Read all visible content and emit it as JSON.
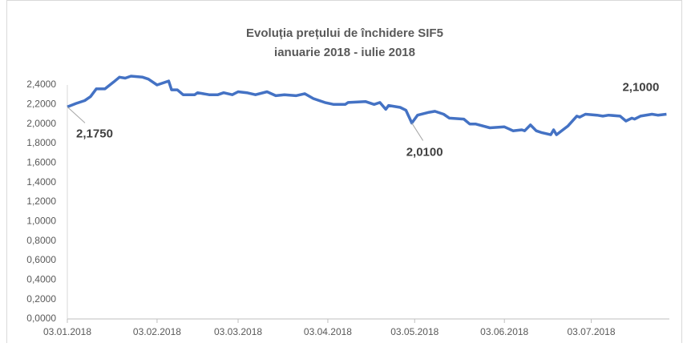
{
  "chart_data": {
    "type": "line",
    "title": "Evoluția prețului de închidere SIF5",
    "subtitle": "ianuarie 2018 - iulie 2018",
    "x": [
      "2018-01-03",
      "2018-01-06",
      "2018-01-09",
      "2018-01-11",
      "2018-01-13",
      "2018-01-16",
      "2018-01-19",
      "2018-01-21",
      "2018-01-23",
      "2018-01-25",
      "2018-01-29",
      "2018-01-31",
      "2018-02-03",
      "2018-02-07",
      "2018-02-08",
      "2018-02-10",
      "2018-02-12",
      "2018-02-16",
      "2018-02-17",
      "2018-02-21",
      "2018-02-24",
      "2018-02-26",
      "2018-03-01",
      "2018-03-03",
      "2018-03-06",
      "2018-03-09",
      "2018-03-13",
      "2018-03-16",
      "2018-03-19",
      "2018-03-23",
      "2018-03-26",
      "2018-03-29",
      "2018-04-02",
      "2018-04-05",
      "2018-04-09",
      "2018-04-10",
      "2018-04-16",
      "2018-04-19",
      "2018-04-21",
      "2018-04-23",
      "2018-04-24",
      "2018-04-28",
      "2018-04-30",
      "2018-05-02",
      "2018-05-04",
      "2018-05-08",
      "2018-05-10",
      "2018-05-13",
      "2018-05-15",
      "2018-05-20",
      "2018-05-22",
      "2018-05-24",
      "2018-05-29",
      "2018-06-03",
      "2018-06-06",
      "2018-06-09",
      "2018-06-10",
      "2018-06-12",
      "2018-06-14",
      "2018-06-16",
      "2018-06-19",
      "2018-06-20",
      "2018-06-21",
      "2018-06-25",
      "2018-06-28",
      "2018-06-29",
      "2018-07-01",
      "2018-07-05",
      "2018-07-07",
      "2018-07-09",
      "2018-07-13",
      "2018-07-15",
      "2018-07-17",
      "2018-07-18",
      "2018-07-20",
      "2018-07-24",
      "2018-07-26",
      "2018-07-29"
    ],
    "series": [
      {
        "color": "#4472c4",
        "values": [
          2.175,
          2.21,
          2.24,
          2.28,
          2.36,
          2.36,
          2.43,
          2.48,
          2.47,
          2.49,
          2.48,
          2.46,
          2.4,
          2.44,
          2.35,
          2.35,
          2.3,
          2.3,
          2.32,
          2.3,
          2.3,
          2.32,
          2.3,
          2.33,
          2.32,
          2.3,
          2.33,
          2.29,
          2.3,
          2.29,
          2.31,
          2.26,
          2.22,
          2.2,
          2.2,
          2.22,
          2.23,
          2.2,
          2.22,
          2.15,
          2.19,
          2.17,
          2.14,
          2.01,
          2.09,
          2.12,
          2.13,
          2.1,
          2.06,
          2.05,
          2.0,
          2.0,
          1.96,
          1.97,
          1.93,
          1.94,
          1.93,
          1.99,
          1.93,
          1.91,
          1.89,
          1.94,
          1.89,
          1.98,
          2.08,
          2.07,
          2.1,
          2.09,
          2.08,
          2.09,
          2.08,
          2.03,
          2.06,
          2.05,
          2.08,
          2.1,
          2.09,
          2.1
        ],
        "value_labels": [
          "2,1750",
          null,
          null,
          null,
          null,
          null,
          null,
          null,
          null,
          null,
          null,
          null,
          null,
          null,
          null,
          null,
          null,
          null,
          null,
          null,
          null,
          null,
          null,
          null,
          null,
          null,
          null,
          null,
          null,
          null,
          null,
          null,
          null,
          null,
          null,
          null,
          null,
          null,
          null,
          null,
          null,
          null,
          null,
          "2,0100",
          null,
          null,
          null,
          null,
          null,
          null,
          null,
          null,
          null,
          null,
          null,
          null,
          null,
          null,
          null,
          null,
          null,
          null,
          null,
          null,
          null,
          null,
          null,
          null,
          null,
          null,
          null,
          null,
          null,
          null,
          null,
          null,
          null,
          "2,1000"
        ]
      }
    ],
    "xlim": [
      "2018-01-03",
      "2018-07-30"
    ],
    "xticks": [
      {
        "value": "2018-01-03",
        "label": "03.01.2018"
      },
      {
        "value": "2018-02-03",
        "label": "03.02.2018"
      },
      {
        "value": "2018-03-03",
        "label": "03.03.2018"
      },
      {
        "value": "2018-04-03",
        "label": "03.04.2018"
      },
      {
        "value": "2018-05-03",
        "label": "03.05.2018"
      },
      {
        "value": "2018-06-03",
        "label": "03.06.2018"
      },
      {
        "value": "2018-07-03",
        "label": "03.07.2018"
      }
    ],
    "ylim": [
      0,
      2.4
    ],
    "yticks": [
      {
        "value": 0,
        "label": "0,0000"
      },
      {
        "value": 0.2,
        "label": "0,2000"
      },
      {
        "value": 0.4,
        "label": "0,4000"
      },
      {
        "value": 0.6,
        "label": "0,6000"
      },
      {
        "value": 0.8,
        "label": "0,8000"
      },
      {
        "value": 1.0,
        "label": "1,0000"
      },
      {
        "value": 1.2,
        "label": "1,2000"
      },
      {
        "value": 1.4,
        "label": "1,4000"
      },
      {
        "value": 1.6,
        "label": "1,6000"
      },
      {
        "value": 1.8,
        "label": "1,8000"
      },
      {
        "value": 2.0,
        "label": "2,0000"
      },
      {
        "value": 2.2,
        "label": "2,2000"
      },
      {
        "value": 2.4,
        "label": "2,4000"
      }
    ],
    "grid": false
  }
}
